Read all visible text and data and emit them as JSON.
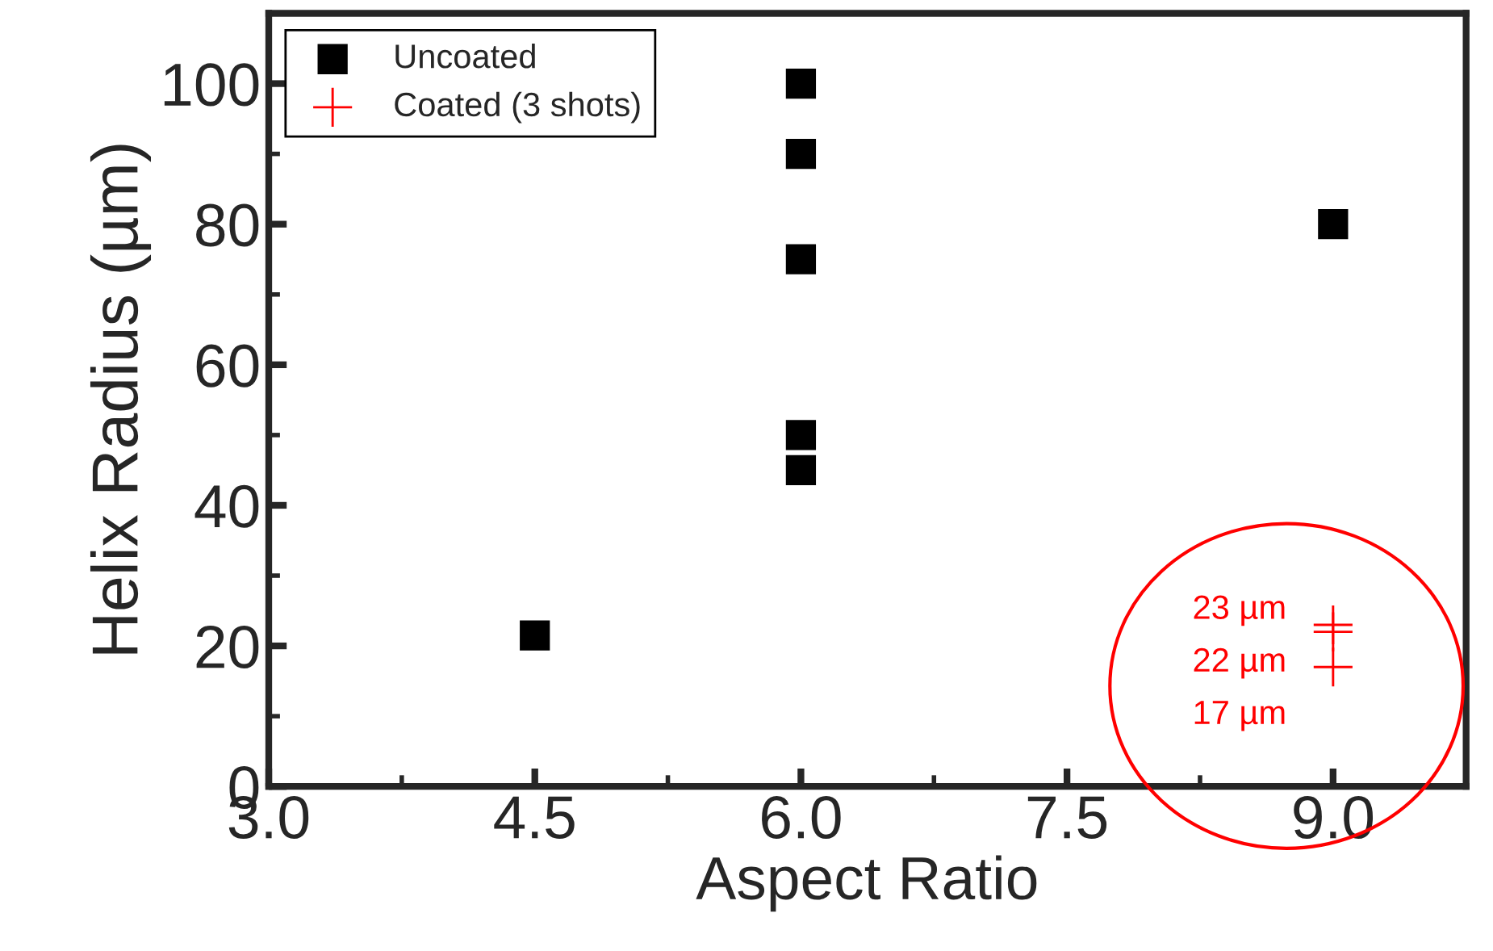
{
  "chart_data": {
    "type": "scatter",
    "xlabel": "Aspect Ratio",
    "ylabel": "Helix Radius (µm)",
    "xlim": [
      3.0,
      9.75
    ],
    "xticks": [
      {
        "value": 3.0,
        "label": "3.0"
      },
      {
        "value": 4.5,
        "label": "4.5"
      },
      {
        "value": 6.0,
        "label": "6.0"
      },
      {
        "value": 7.5,
        "label": "7.5"
      },
      {
        "value": 9.0,
        "label": "9.0"
      }
    ],
    "ylim": [
      0,
      110
    ],
    "yticks": [
      0,
      20,
      40,
      60,
      80,
      100
    ],
    "grid": false,
    "legend": "top left",
    "series": [
      {
        "name": "Uncoated",
        "color": "#000000",
        "marker": "square",
        "x": [
          4.5,
          6.0,
          6.0,
          6.0,
          6.0,
          6.0,
          9.0
        ],
        "values": [
          21.5,
          100,
          90,
          75,
          50,
          45,
          80
        ]
      },
      {
        "name": "Coated (3 shots)",
        "color": "#ff0000",
        "marker": "cross",
        "x": [
          9.0,
          9.0,
          9.0
        ],
        "values": [
          23,
          22,
          17
        ]
      }
    ],
    "annotations": [
      "23 µm",
      "22 µm",
      "17 µm"
    ]
  }
}
